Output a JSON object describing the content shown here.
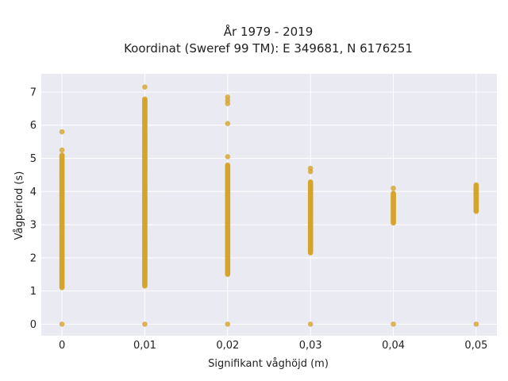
{
  "chart_data": {
    "type": "scatter",
    "title_line1": "År 1979 - 2019",
    "title_line2": "Koordinat (Sweref 99 TM): E 349681, N 6176251",
    "xlabel": "Signifikant våghöjd (m)",
    "ylabel": "Vågperiod (s)",
    "xlim": [
      -0.0025,
      0.0525
    ],
    "ylim": [
      -0.35,
      7.55
    ],
    "x_ticks": [
      0,
      0.01,
      0.02,
      0.03,
      0.04,
      0.05
    ],
    "x_tick_labels": [
      "0",
      "0,01",
      "0,02",
      "0,03",
      "0,04",
      "0,05"
    ],
    "y_ticks": [
      0,
      1,
      2,
      3,
      4,
      5,
      6,
      7
    ],
    "y_tick_labels": [
      "0",
      "1",
      "2",
      "3",
      "4",
      "5",
      "6",
      "7"
    ],
    "grid": true,
    "background": "#eaeaf2",
    "marker_color": "#d4a42b",
    "columns": [
      {
        "x": 0,
        "band": [
          1.1,
          5.1
        ],
        "extra_y": [
          0,
          5.25,
          5.8
        ]
      },
      {
        "x": 0.01,
        "band": [
          1.15,
          6.8
        ],
        "extra_y": [
          0,
          7.15
        ]
      },
      {
        "x": 0.02,
        "band": [
          1.5,
          4.8
        ],
        "extra_y": [
          0,
          5.05,
          6.05,
          6.65,
          6.75,
          6.85
        ]
      },
      {
        "x": 0.03,
        "band": [
          2.15,
          4.3
        ],
        "extra_y": [
          0,
          4.6,
          4.7
        ]
      },
      {
        "x": 0.04,
        "band": [
          3.05,
          3.95
        ],
        "extra_y": [
          0,
          4.1
        ]
      },
      {
        "x": 0.05,
        "band": [
          3.4,
          4.2
        ],
        "extra_y": [
          0
        ]
      }
    ]
  }
}
